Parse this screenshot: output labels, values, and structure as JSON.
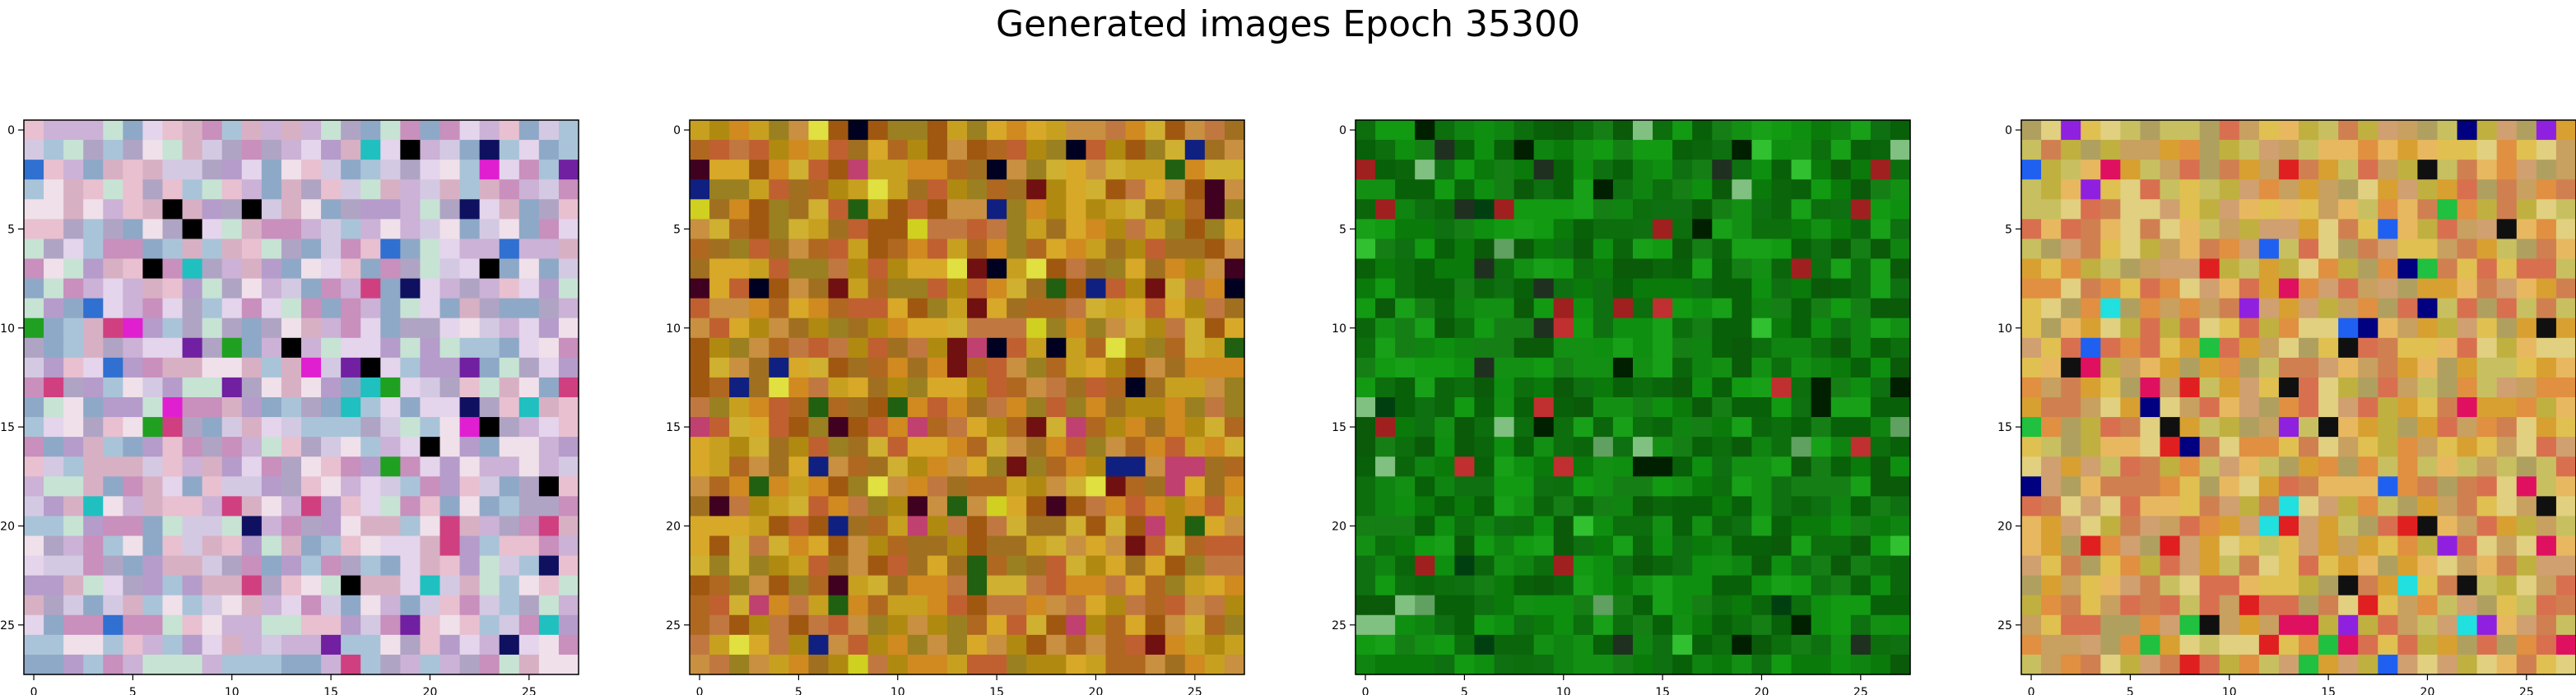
{
  "title": "Generated images Epoch 35300",
  "chart_data": {
    "type": "heatmap",
    "title": "Generated images Epoch 35300",
    "subplot_count": 4,
    "image_shape": [
      28,
      28
    ],
    "x_ticks": [
      0,
      5,
      10,
      15,
      20,
      25
    ],
    "y_ticks": [
      0,
      5,
      10,
      15,
      20,
      25
    ],
    "xlim": [
      -0.5,
      27.5
    ],
    "ylim": [
      27.5,
      -0.5
    ],
    "grid": false,
    "panels": [
      {
        "palette": [
          "#cbb2d6",
          "#d4c9e3",
          "#b0a4c4",
          "#e4d4ec",
          "#c98fbd",
          "#a9c4d8",
          "#c7e3d4",
          "#d8b0c4",
          "#8ea9c7",
          "#e8c0d0",
          "#b59ccb",
          "#f0e0ea"
        ],
        "accents": [
          "#000000",
          "#e020d0",
          "#20c0c0",
          "#101060",
          "#20a020",
          "#7020a0",
          "#d04080",
          "#3070d0"
        ]
      },
      {
        "palette": [
          "#c8a020",
          "#b08a10",
          "#d08a20",
          "#a07020",
          "#c06030",
          "#9a8020",
          "#d0b030",
          "#b06820",
          "#c89040",
          "#a05810",
          "#c07840",
          "#d8a828"
        ],
        "accents": [
          "#000020",
          "#102080",
          "#400020",
          "#206010",
          "#c04070",
          "#e0e040",
          "#701010",
          "#d0d020"
        ]
      },
      {
        "palette": [
          "#0a7a0a",
          "#0f8f10",
          "#086008",
          "#129a12",
          "#0c6e0c",
          "#157f15",
          "#0a5a0a",
          "#18a018",
          "#0e7010",
          "#108410",
          "#0b660b",
          "#139013"
        ],
        "accents": [
          "#002000",
          "#c03030",
          "#60a060",
          "#004010",
          "#a02020",
          "#30c030",
          "#203020",
          "#80c080"
        ]
      },
      {
        "palette": [
          "#d8a030",
          "#e0c050",
          "#c8a060",
          "#d08050",
          "#e0d080",
          "#c0b040",
          "#d87050",
          "#b0a060",
          "#e09040",
          "#c8c060",
          "#d0a070",
          "#e8b860"
        ],
        "accents": [
          "#000080",
          "#20e0e0",
          "#e01060",
          "#9020e0",
          "#101010",
          "#20c040",
          "#e02020",
          "#2060f0"
        ]
      }
    ]
  }
}
